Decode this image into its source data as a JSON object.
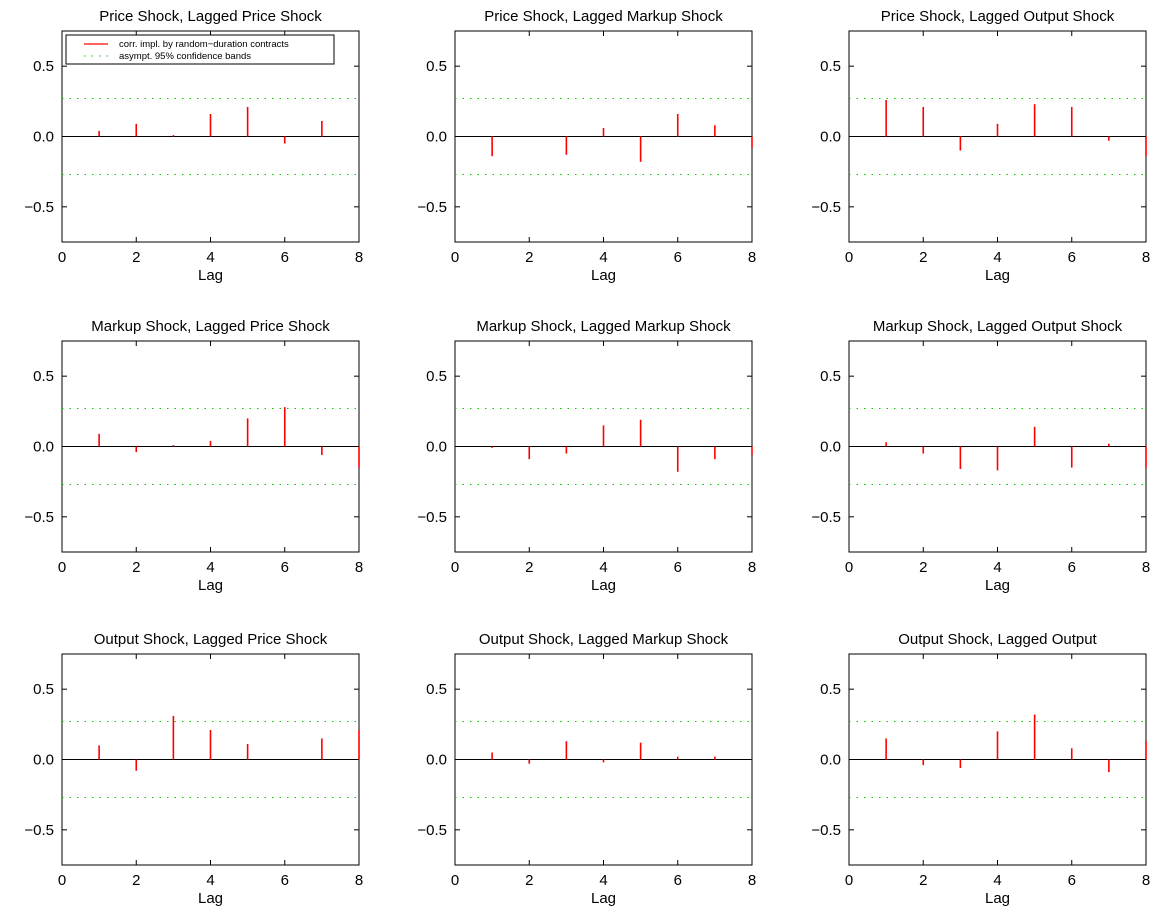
{
  "legend": {
    "corr_label": "corr. impl. by random−duration contracts",
    "band_label": "asympt. 95% confidence bands"
  },
  "colors": {
    "stem": "#ff0000",
    "band": "#00cc00",
    "axis": "#000000"
  },
  "chart_data": [
    {
      "type": "stem",
      "title": "Price Shock, Lagged Price Shock",
      "xlabel": "Lag",
      "xlim": [
        0,
        8
      ],
      "ylim": [
        -0.75,
        0.75
      ],
      "xticks": [
        "0",
        "2",
        "4",
        "6",
        "8"
      ],
      "yticks": [
        "0.5",
        "0.0",
        "−0.5"
      ],
      "band": 0.27,
      "legend": true,
      "x": [
        1,
        2,
        3,
        4,
        5,
        6,
        7
      ],
      "values": [
        0.04,
        0.09,
        0.01,
        0.16,
        0.21,
        -0.05,
        0.11
      ]
    },
    {
      "type": "stem",
      "title": "Price Shock, Lagged Markup Shock",
      "xlabel": "Lag",
      "xlim": [
        0,
        8
      ],
      "ylim": [
        -0.75,
        0.75
      ],
      "xticks": [
        "0",
        "2",
        "4",
        "6",
        "8"
      ],
      "yticks": [
        "0.5",
        "0.0",
        "−0.5"
      ],
      "band": 0.27,
      "legend": false,
      "x": [
        1,
        2,
        3,
        4,
        5,
        6,
        7,
        8
      ],
      "values": [
        -0.14,
        0.0,
        -0.13,
        0.06,
        -0.18,
        0.16,
        0.08,
        -0.08
      ]
    },
    {
      "type": "stem",
      "title": "Price Shock, Lagged Output Shock",
      "xlabel": "Lag",
      "xlim": [
        0,
        8
      ],
      "ylim": [
        -0.75,
        0.75
      ],
      "xticks": [
        "0",
        "2",
        "4",
        "6",
        "8"
      ],
      "yticks": [
        "0.5",
        "0.0",
        "−0.5"
      ],
      "band": 0.27,
      "legend": false,
      "x": [
        1,
        2,
        3,
        4,
        5,
        6,
        7,
        8
      ],
      "values": [
        0.26,
        0.21,
        -0.1,
        0.09,
        0.23,
        0.21,
        -0.03,
        -0.14
      ]
    },
    {
      "type": "stem",
      "title": "Markup Shock, Lagged Price Shock",
      "xlabel": "Lag",
      "xlim": [
        0,
        8
      ],
      "ylim": [
        -0.75,
        0.75
      ],
      "xticks": [
        "0",
        "2",
        "4",
        "6",
        "8"
      ],
      "yticks": [
        "0.5",
        "0.0",
        "−0.5"
      ],
      "band": 0.27,
      "legend": false,
      "x": [
        1,
        2,
        3,
        4,
        5,
        6,
        7,
        8
      ],
      "values": [
        0.09,
        -0.04,
        0.01,
        0.04,
        0.2,
        0.28,
        -0.06,
        -0.15
      ]
    },
    {
      "type": "stem",
      "title": "Markup Shock, Lagged Markup Shock",
      "xlabel": "Lag",
      "xlim": [
        0,
        8
      ],
      "ylim": [
        -0.75,
        0.75
      ],
      "xticks": [
        "0",
        "2",
        "4",
        "6",
        "8"
      ],
      "yticks": [
        "0.5",
        "0.0",
        "−0.5"
      ],
      "band": 0.27,
      "legend": false,
      "x": [
        1,
        2,
        3,
        4,
        5,
        6,
        7,
        8
      ],
      "values": [
        -0.01,
        -0.09,
        -0.05,
        0.15,
        0.19,
        -0.18,
        -0.09,
        -0.06
      ]
    },
    {
      "type": "stem",
      "title": "Markup Shock, Lagged Output Shock",
      "xlabel": "Lag",
      "xlim": [
        0,
        8
      ],
      "ylim": [
        -0.75,
        0.75
      ],
      "xticks": [
        "0",
        "2",
        "4",
        "6",
        "8"
      ],
      "yticks": [
        "0.5",
        "0.0",
        "−0.5"
      ],
      "band": 0.27,
      "legend": false,
      "x": [
        1,
        2,
        3,
        4,
        5,
        6,
        7,
        8
      ],
      "values": [
        0.03,
        -0.05,
        -0.16,
        -0.17,
        0.14,
        -0.15,
        0.02,
        -0.15
      ]
    },
    {
      "type": "stem",
      "title": "Output Shock, Lagged Price Shock",
      "xlabel": "Lag",
      "xlim": [
        0,
        8
      ],
      "ylim": [
        -0.75,
        0.75
      ],
      "xticks": [
        "0",
        "2",
        "4",
        "6",
        "8"
      ],
      "yticks": [
        "0.5",
        "0.0",
        "−0.5"
      ],
      "band": 0.27,
      "legend": false,
      "x": [
        1,
        2,
        3,
        4,
        5,
        6,
        7,
        8
      ],
      "values": [
        0.1,
        -0.08,
        0.31,
        0.21,
        0.11,
        0.0,
        0.15,
        0.21
      ]
    },
    {
      "type": "stem",
      "title": "Output Shock, Lagged Markup Shock",
      "xlabel": "Lag",
      "xlim": [
        0,
        8
      ],
      "ylim": [
        -0.75,
        0.75
      ],
      "xticks": [
        "0",
        "2",
        "4",
        "6",
        "8"
      ],
      "yticks": [
        "0.5",
        "0.0",
        "−0.5"
      ],
      "band": 0.27,
      "legend": false,
      "x": [
        1,
        2,
        3,
        4,
        5,
        6,
        7,
        8
      ],
      "values": [
        0.05,
        -0.03,
        0.13,
        -0.02,
        0.12,
        0.02,
        0.02,
        0.0
      ]
    },
    {
      "type": "stem",
      "title": "Output Shock, Lagged Output",
      "xlabel": "Lag",
      "xlim": [
        0,
        8
      ],
      "ylim": [
        -0.75,
        0.75
      ],
      "xticks": [
        "0",
        "2",
        "4",
        "6",
        "8"
      ],
      "yticks": [
        "0.5",
        "0.0",
        "−0.5"
      ],
      "band": 0.27,
      "legend": false,
      "x": [
        1,
        2,
        3,
        4,
        5,
        6,
        7,
        8
      ],
      "values": [
        0.15,
        -0.04,
        -0.06,
        0.2,
        0.32,
        0.08,
        -0.09,
        0.13
      ]
    }
  ]
}
